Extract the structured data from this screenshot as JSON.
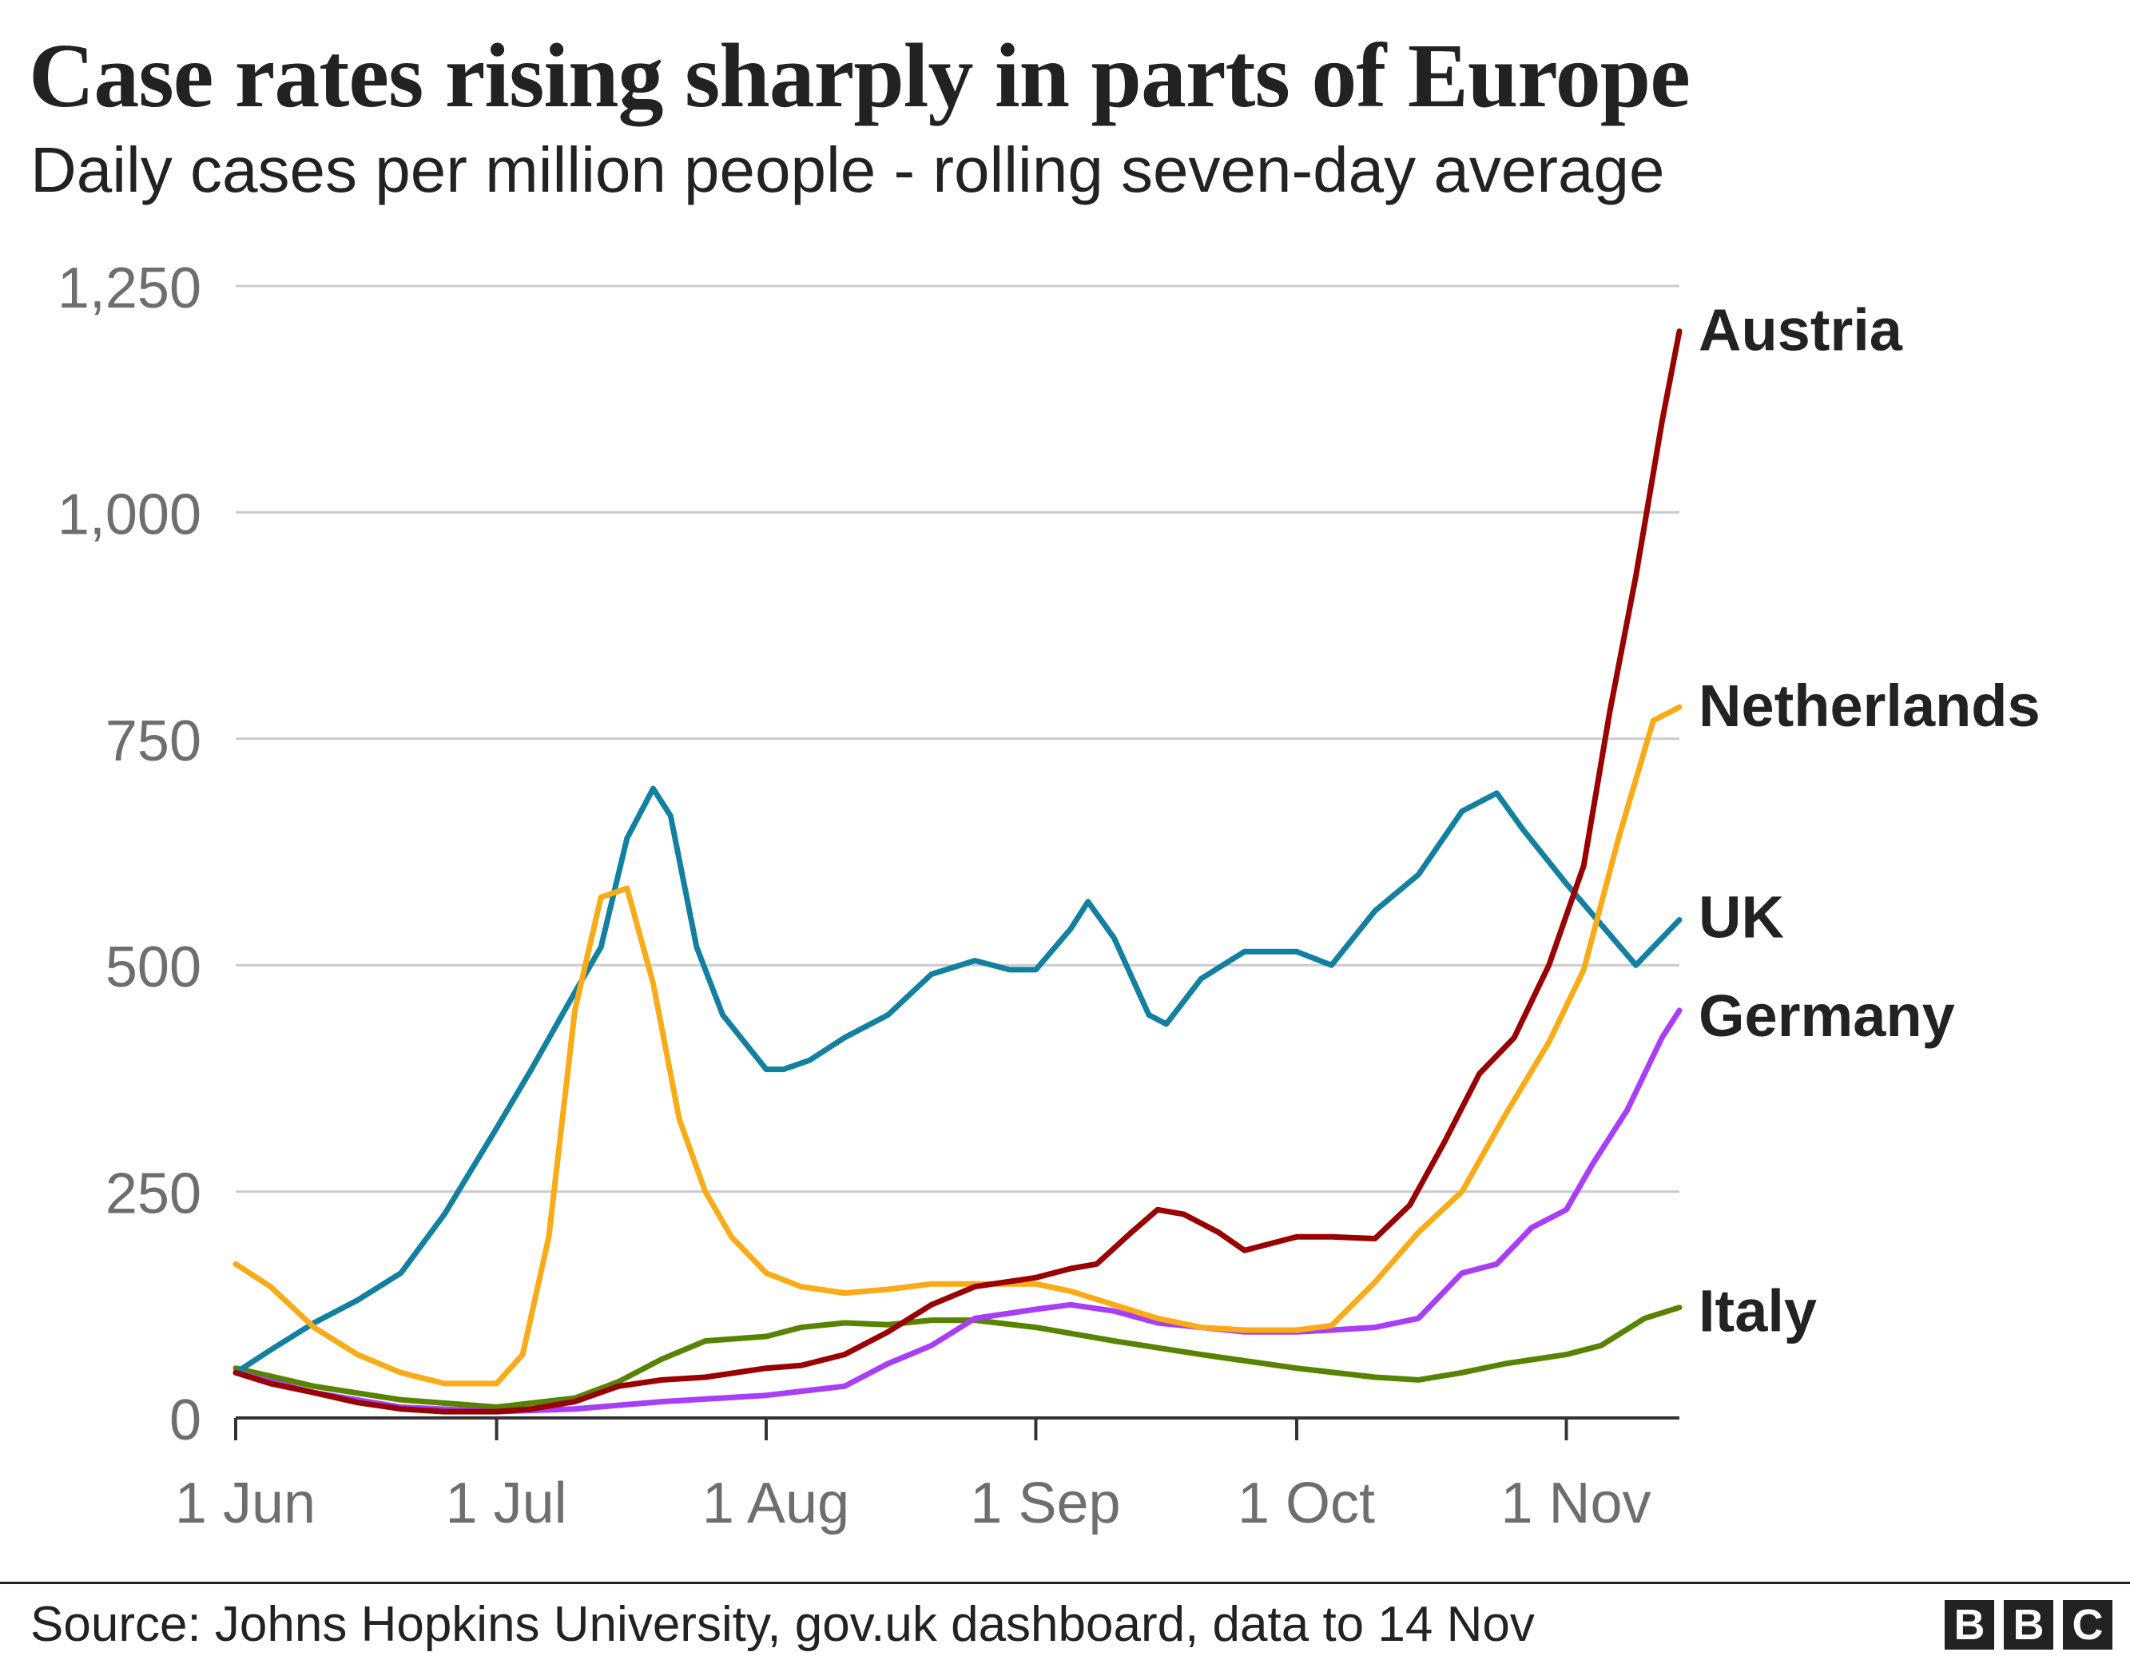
{
  "header": {
    "title": "Case rates rising sharply in parts of Europe",
    "subtitle": "Daily cases per million people - rolling seven-day average"
  },
  "footer": {
    "source": "Source: Johns Hopkins University, gov.uk dashboard, data to 14 Nov",
    "logo_letters": [
      "B",
      "B",
      "C"
    ]
  },
  "chart_data": {
    "type": "line",
    "title": "Case rates rising sharply in parts of Europe",
    "subtitle": "Daily cases per million people - rolling seven-day average",
    "xlabel": "",
    "ylabel": "",
    "x_range": [
      "2020-06-01",
      "2020-11-14"
    ],
    "ylim": [
      0,
      1250
    ],
    "y_ticks": [
      0,
      250,
      500,
      750,
      1000,
      1250
    ],
    "y_tick_labels": [
      "0",
      "250",
      "500",
      "750",
      "1,000",
      "1,250"
    ],
    "x_ticks": [
      "2020-06-01",
      "2020-07-01",
      "2020-08-01",
      "2020-09-01",
      "2020-10-01",
      "2020-11-01"
    ],
    "x_tick_labels": [
      "1 Jun",
      "1 Jul",
      "1 Aug",
      "1 Sep",
      "1 Oct",
      "1 Nov"
    ],
    "grid": "horizontal",
    "legend": "direct labels at right end of lines",
    "series": [
      {
        "name": "Austria",
        "color": "#990000",
        "x": [
          "2020-06-01",
          "2020-06-05",
          "2020-06-10",
          "2020-06-15",
          "2020-06-20",
          "2020-06-25",
          "2020-07-01",
          "2020-07-05",
          "2020-07-10",
          "2020-07-15",
          "2020-07-20",
          "2020-07-25",
          "2020-08-01",
          "2020-08-05",
          "2020-08-10",
          "2020-08-15",
          "2020-08-20",
          "2020-08-25",
          "2020-09-01",
          "2020-09-05",
          "2020-09-08",
          "2020-09-12",
          "2020-09-15",
          "2020-09-18",
          "2020-09-22",
          "2020-09-25",
          "2020-10-01",
          "2020-10-05",
          "2020-10-10",
          "2020-10-14",
          "2020-10-18",
          "2020-10-22",
          "2020-10-26",
          "2020-10-30",
          "2020-11-03",
          "2020-11-06",
          "2020-11-09",
          "2020-11-12",
          "2020-11-14"
        ],
        "values": [
          50,
          38,
          28,
          17,
          10,
          7,
          7,
          10,
          18,
          35,
          42,
          45,
          55,
          58,
          70,
          95,
          125,
          145,
          155,
          165,
          170,
          205,
          230,
          225,
          205,
          185,
          200,
          200,
          198,
          235,
          305,
          380,
          420,
          500,
          610,
          780,
          930,
          1100,
          1200
        ]
      },
      {
        "name": "Netherlands",
        "color": "#FAAB18",
        "x": [
          "2020-06-01",
          "2020-06-05",
          "2020-06-10",
          "2020-06-15",
          "2020-06-20",
          "2020-06-25",
          "2020-07-01",
          "2020-07-04",
          "2020-07-07",
          "2020-07-10",
          "2020-07-13",
          "2020-07-16",
          "2020-07-19",
          "2020-07-22",
          "2020-07-25",
          "2020-07-28",
          "2020-08-01",
          "2020-08-05",
          "2020-08-10",
          "2020-08-15",
          "2020-08-20",
          "2020-08-25",
          "2020-09-01",
          "2020-09-05",
          "2020-09-10",
          "2020-09-15",
          "2020-09-20",
          "2020-09-25",
          "2020-10-01",
          "2020-10-05",
          "2020-10-10",
          "2020-10-15",
          "2020-10-20",
          "2020-10-25",
          "2020-10-30",
          "2020-11-03",
          "2020-11-07",
          "2020-11-11",
          "2020-11-14"
        ],
        "values": [
          170,
          145,
          100,
          70,
          50,
          38,
          38,
          70,
          200,
          450,
          575,
          585,
          480,
          330,
          250,
          200,
          160,
          145,
          138,
          142,
          148,
          148,
          148,
          140,
          125,
          110,
          100,
          97,
          97,
          102,
          150,
          205,
          250,
          335,
          415,
          495,
          640,
          770,
          785
        ]
      },
      {
        "name": "UK",
        "color": "#1380A1",
        "x": [
          "2020-06-01",
          "2020-06-05",
          "2020-06-10",
          "2020-06-15",
          "2020-06-20",
          "2020-06-25",
          "2020-07-01",
          "2020-07-05",
          "2020-07-10",
          "2020-07-13",
          "2020-07-16",
          "2020-07-19",
          "2020-07-21",
          "2020-07-24",
          "2020-07-27",
          "2020-08-01",
          "2020-08-03",
          "2020-08-06",
          "2020-08-10",
          "2020-08-15",
          "2020-08-20",
          "2020-08-25",
          "2020-08-29",
          "2020-09-01",
          "2020-09-05",
          "2020-09-07",
          "2020-09-10",
          "2020-09-14",
          "2020-09-16",
          "2020-09-20",
          "2020-09-25",
          "2020-10-01",
          "2020-10-05",
          "2020-10-10",
          "2020-10-15",
          "2020-10-20",
          "2020-10-24",
          "2020-10-27",
          "2020-11-01",
          "2020-11-05",
          "2020-11-09",
          "2020-11-14"
        ],
        "values": [
          50,
          75,
          105,
          130,
          160,
          225,
          320,
          385,
          470,
          520,
          640,
          695,
          665,
          520,
          445,
          385,
          385,
          395,
          420,
          445,
          490,
          505,
          495,
          495,
          540,
          570,
          530,
          445,
          435,
          485,
          515,
          515,
          500,
          560,
          600,
          670,
          690,
          650,
          590,
          545,
          500,
          550
        ]
      },
      {
        "name": "Germany",
        "color": "#A83EF8",
        "x": [
          "2020-06-01",
          "2020-06-10",
          "2020-06-20",
          "2020-07-01",
          "2020-07-10",
          "2020-07-20",
          "2020-08-01",
          "2020-08-10",
          "2020-08-15",
          "2020-08-20",
          "2020-08-25",
          "2020-09-01",
          "2020-09-05",
          "2020-09-10",
          "2020-09-15",
          "2020-09-20",
          "2020-09-25",
          "2020-10-01",
          "2020-10-05",
          "2020-10-10",
          "2020-10-15",
          "2020-10-20",
          "2020-10-24",
          "2020-10-28",
          "2020-11-01",
          "2020-11-04",
          "2020-11-08",
          "2020-11-12",
          "2020-11-14"
        ],
        "values": [
          50,
          28,
          12,
          7,
          10,
          18,
          25,
          35,
          60,
          80,
          110,
          120,
          125,
          118,
          105,
          100,
          95,
          95,
          97,
          100,
          110,
          160,
          170,
          210,
          230,
          280,
          340,
          420,
          450
        ]
      },
      {
        "name": "Italy",
        "color": "#588300",
        "x": [
          "2020-06-01",
          "2020-06-10",
          "2020-06-20",
          "2020-07-01",
          "2020-07-10",
          "2020-07-15",
          "2020-07-20",
          "2020-07-25",
          "2020-08-01",
          "2020-08-05",
          "2020-08-10",
          "2020-08-15",
          "2020-08-20",
          "2020-08-25",
          "2020-09-01",
          "2020-09-10",
          "2020-09-20",
          "2020-10-01",
          "2020-10-10",
          "2020-10-15",
          "2020-10-20",
          "2020-10-25",
          "2020-11-01",
          "2020-11-05",
          "2020-11-10",
          "2020-11-14"
        ],
        "values": [
          55,
          35,
          20,
          12,
          22,
          40,
          65,
          85,
          90,
          100,
          105,
          103,
          108,
          108,
          100,
          85,
          70,
          55,
          45,
          42,
          50,
          60,
          70,
          80,
          110,
          122
        ]
      }
    ]
  }
}
